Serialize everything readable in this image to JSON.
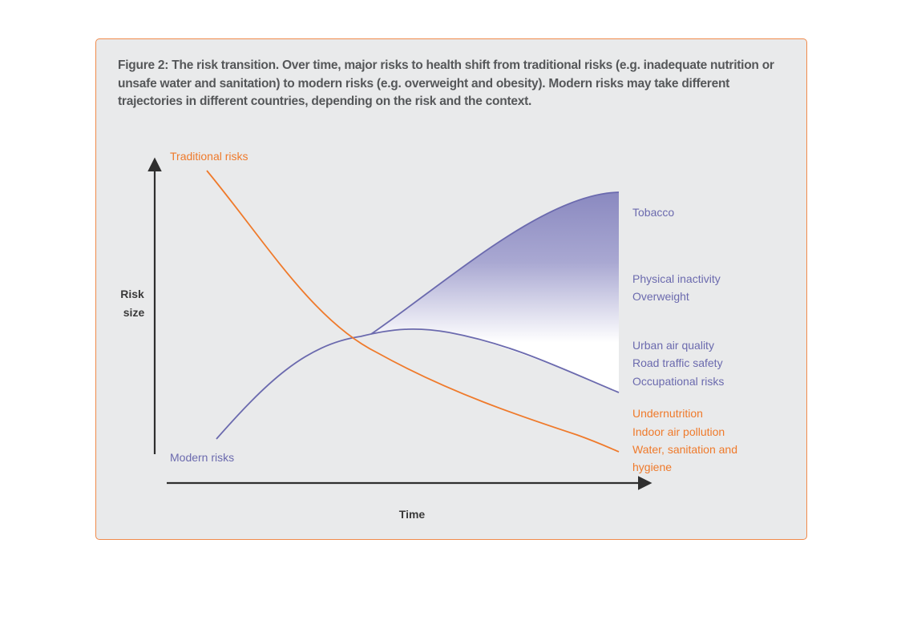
{
  "caption": "Figure 2: The risk transition. Over time, major risks to health shift from traditional risks (e.g. inadequate nutrition or unsafe water and sanitation) to modern risks (e.g. overweight and obesity). Modern risks may take different trajectories in different countries, depending on the risk and the context.",
  "axes": {
    "y_label_line1": "Risk",
    "y_label_line2": "size",
    "x_label": "Time"
  },
  "curves": {
    "traditional_label": "Traditional risks",
    "modern_label": "Modern risks"
  },
  "outcomes": {
    "top": [
      "Tobacco"
    ],
    "middle": [
      "Physical inactivity",
      "Overweight"
    ],
    "lower": [
      "Urban air quality",
      "Road traffic safety",
      "Occupational risks"
    ],
    "traditional": [
      "Undernutrition",
      "Indoor air pollution",
      "Water, sanitation and",
      "hygiene"
    ]
  },
  "colors": {
    "traditional": "#ef7a2b",
    "modern": "#6b6aae",
    "panel_border": "#f08a4b",
    "panel_bg": "#e9eaeb",
    "caption": "#555759",
    "axis": "#2f2f2f"
  }
}
